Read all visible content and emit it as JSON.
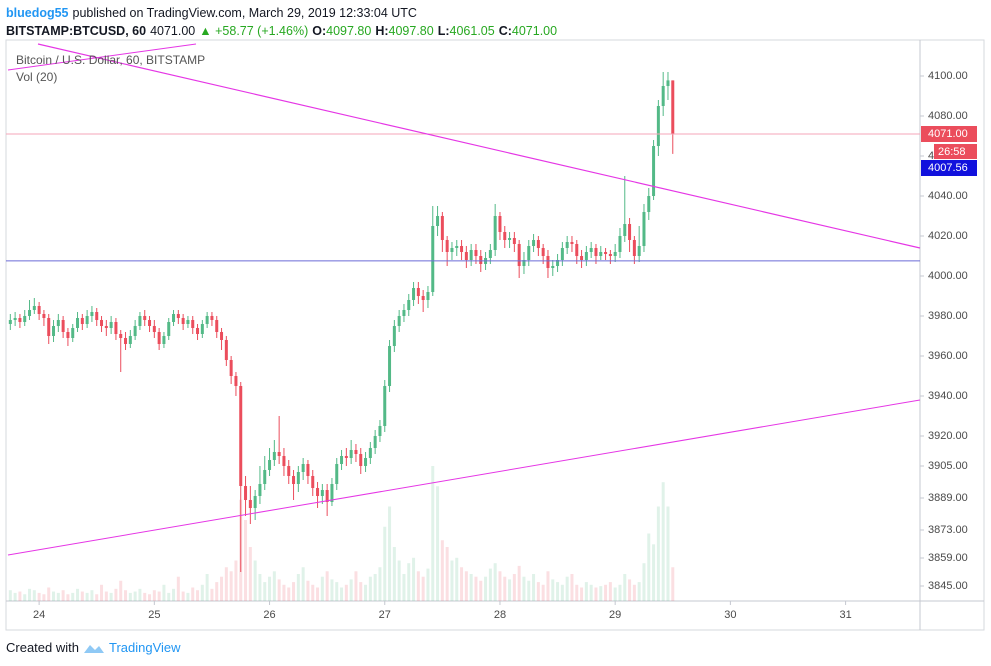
{
  "chart_data": {
    "type": "candlestick",
    "header": {
      "author": "bluedog55",
      "published": "published on TradingView.com, March 29, 2019 12:33:04 UTC",
      "symbol": "BITSTAMP:BTCUSD, 60",
      "last": "4071.00",
      "change": "+58.77 (+1.46%)",
      "o_label": "O:",
      "o": "4097.80",
      "h_label": "H:",
      "h": "4097.80",
      "l_label": "L:",
      "l": "4061.05",
      "c_label": "C:",
      "c": "4071.00"
    },
    "series_title": "Bitcoin / U.S. Dollar, 60, BITSTAMP",
    "indicator": "Vol (20)",
    "footer": {
      "created": "Created with",
      "brand": "TradingView"
    },
    "up_color": "#53b987",
    "down_color": "#eb4d5c",
    "x": [
      -6,
      -5,
      -4,
      -3,
      -2,
      -1,
      0,
      1,
      2,
      3,
      4,
      5,
      6,
      7,
      8,
      9,
      10,
      11,
      12,
      13,
      14,
      15,
      16,
      17,
      18,
      19,
      20,
      21,
      22,
      23,
      24,
      25,
      26,
      27,
      28,
      29,
      30,
      31,
      32,
      33,
      34,
      35,
      36,
      37,
      38,
      39,
      40,
      41,
      42,
      43,
      44,
      45,
      46,
      47,
      48,
      49,
      50,
      51,
      52,
      53,
      54,
      55,
      56,
      57,
      58,
      59,
      60,
      61,
      62,
      63,
      64,
      65,
      66,
      67,
      68,
      69,
      70,
      71,
      72,
      73,
      74,
      75,
      76,
      77,
      78,
      79,
      80,
      81,
      82,
      83,
      84,
      85,
      86,
      87,
      88,
      89,
      90,
      91,
      92,
      93,
      94,
      95,
      96,
      97,
      98,
      99,
      100,
      101,
      102,
      103,
      104,
      105,
      106,
      107,
      108,
      109,
      110,
      111,
      112,
      113,
      114,
      115,
      116,
      117,
      118,
      119,
      120,
      121,
      122,
      123,
      124,
      125,
      126,
      127,
      128,
      129,
      130,
      131,
      132
    ],
    "open": [
      3976,
      3978,
      3979,
      3977,
      3980,
      3983,
      3985,
      3981,
      3979,
      3970,
      3975,
      3978,
      3972,
      3969,
      3974,
      3979,
      3976,
      3980,
      3982,
      3978,
      3975,
      3974,
      3977,
      3971,
      3969,
      3966,
      3970,
      3975,
      3980,
      3978,
      3975,
      3972,
      3966,
      3970,
      3977,
      3981,
      3979,
      3976,
      3978,
      3974,
      3971,
      3976,
      3980,
      3978,
      3972,
      3968,
      3958,
      3950,
      3945,
      3895,
      3888,
      3884,
      3890,
      3896,
      3903,
      3908,
      3912,
      3910,
      3905,
      3900,
      3896,
      3902,
      3906,
      3900,
      3894,
      3890,
      3893,
      3887,
      3896,
      3906,
      3910,
      3909,
      3913,
      3911,
      3905,
      3909,
      3914,
      3920,
      3925,
      3945,
      3965,
      3975,
      3980,
      3983,
      3988,
      3994,
      3990,
      3988,
      3992,
      4025,
      4030,
      4018,
      4012,
      4014,
      4015,
      4012,
      4008,
      4013,
      4010,
      4006,
      4009,
      4013,
      4030,
      4022,
      4018,
      4019,
      4016,
      4005,
      4008,
      4015,
      4018,
      4014,
      4010,
      4004,
      4005,
      4008,
      4014,
      4017,
      4016,
      4010,
      4008,
      4012,
      4014,
      4010,
      4012,
      4011,
      4010,
      4012,
      4020,
      4026,
      4018,
      4010,
      4015,
      4032,
      4040,
      4065,
      4085,
      4095,
      4097.8
    ],
    "high": [
      3981,
      3982,
      3981,
      3983,
      3988,
      3989,
      3987,
      3983,
      3981,
      3978,
      3981,
      3980,
      3974,
      3976,
      3982,
      3981,
      3983,
      3985,
      3984,
      3980,
      3978,
      3980,
      3979,
      3973,
      3972,
      3973,
      3978,
      3982,
      3983,
      3980,
      3978,
      3974,
      3972,
      3979,
      3983,
      3983,
      3981,
      3980,
      3980,
      3976,
      3978,
      3982,
      3982,
      3980,
      3974,
      3970,
      3960,
      3952,
      3947,
      3900,
      3895,
      3893,
      3905,
      3910,
      3914,
      3918,
      3930,
      3914,
      3908,
      3903,
      3905,
      3909,
      3908,
      3903,
      3897,
      3896,
      3896,
      3899,
      3909,
      3913,
      3914,
      3918,
      3916,
      3914,
      3912,
      3917,
      3923,
      3928,
      3948,
      3968,
      3978,
      3983,
      3986,
      3991,
      3997,
      3997,
      3993,
      3995,
      4035,
      4035,
      4032,
      4020,
      4017,
      4018,
      4018,
      4015,
      4016,
      4016,
      4013,
      4012,
      4016,
      4036,
      4032,
      4025,
      4022,
      4022,
      4018,
      4012,
      4018,
      4021,
      4020,
      4016,
      4013,
      4008,
      4011,
      4017,
      4020,
      4020,
      4018,
      4013,
      4015,
      4017,
      4016,
      4015,
      4014,
      4013,
      4016,
      4024,
      4050,
      4029,
      4020,
      4025,
      4036,
      4044,
      4068,
      4088,
      4102,
      4102,
      4097.8
    ],
    "low": [
      3973,
      3975,
      3974,
      3975,
      3978,
      3981,
      3978,
      3975,
      3966,
      3967,
      3972,
      3969,
      3965,
      3967,
      3972,
      3973,
      3974,
      3977,
      3975,
      3972,
      3970,
      3971,
      3968,
      3952,
      3963,
      3964,
      3968,
      3973,
      3975,
      3972,
      3969,
      3963,
      3964,
      3968,
      3975,
      3976,
      3973,
      3974,
      3971,
      3968,
      3969,
      3974,
      3975,
      3969,
      3963,
      3955,
      3946,
      3940,
      3852,
      3880,
      3876,
      3878,
      3886,
      3893,
      3900,
      3905,
      3906,
      3900,
      3896,
      3888,
      3892,
      3898,
      3896,
      3890,
      3884,
      3886,
      3880,
      3885,
      3893,
      3903,
      3905,
      3906,
      3907,
      3901,
      3902,
      3906,
      3911,
      3917,
      3922,
      3942,
      3962,
      3972,
      3977,
      3980,
      3985,
      3986,
      3982,
      3984,
      3990,
      4020,
      4012,
      4005,
      4008,
      4010,
      4008,
      4004,
      4005,
      4006,
      4002,
      4003,
      4006,
      4010,
      4018,
      4014,
      4014,
      4012,
      3999,
      4001,
      4005,
      4012,
      4010,
      4006,
      3999,
      4000,
      4002,
      4005,
      4011,
      4012,
      4006,
      4004,
      4005,
      4009,
      4006,
      4008,
      4008,
      4006,
      4007,
      4009,
      4017,
      4012,
      4006,
      4007,
      4012,
      4028,
      4038,
      4060,
      4080,
      4088,
      4061.05
    ],
    "close": [
      3978,
      3979,
      3977,
      3980,
      3983,
      3985,
      3981,
      3979,
      3970,
      3975,
      3978,
      3972,
      3969,
      3974,
      3979,
      3976,
      3980,
      3982,
      3978,
      3975,
      3974,
      3977,
      3971,
      3969,
      3966,
      3970,
      3975,
      3980,
      3978,
      3975,
      3972,
      3966,
      3970,
      3977,
      3981,
      3979,
      3976,
      3978,
      3974,
      3971,
      3976,
      3980,
      3978,
      3972,
      3968,
      3958,
      3950,
      3945,
      3895,
      3888,
      3884,
      3890,
      3896,
      3903,
      3908,
      3912,
      3910,
      3905,
      3900,
      3896,
      3902,
      3906,
      3900,
      3894,
      3890,
      3893,
      3887,
      3896,
      3906,
      3910,
      3909,
      3913,
      3911,
      3905,
      3909,
      3914,
      3920,
      3925,
      3945,
      3965,
      3975,
      3980,
      3983,
      3988,
      3994,
      3990,
      3988,
      3992,
      4025,
      4030,
      4018,
      4012,
      4014,
      4015,
      4012,
      4008,
      4013,
      4010,
      4006,
      4009,
      4013,
      4030,
      4022,
      4018,
      4019,
      4016,
      4005,
      4008,
      4015,
      4018,
      4014,
      4010,
      4004,
      4005,
      4008,
      4014,
      4017,
      4016,
      4010,
      4008,
      4012,
      4014,
      4010,
      4012,
      4011,
      4010,
      4012,
      4020,
      4026,
      4018,
      4010,
      4015,
      4032,
      4040,
      4065,
      4085,
      4095,
      4097.8,
      4071
    ],
    "volume": [
      8,
      6,
      7,
      5,
      9,
      8,
      6,
      5,
      10,
      7,
      6,
      8,
      5,
      6,
      9,
      7,
      6,
      8,
      5,
      12,
      7,
      6,
      9,
      15,
      8,
      6,
      7,
      9,
      6,
      5,
      8,
      7,
      12,
      6,
      9,
      18,
      7,
      6,
      10,
      8,
      12,
      20,
      9,
      14,
      18,
      25,
      22,
      30,
      75,
      60,
      40,
      30,
      20,
      14,
      18,
      22,
      16,
      12,
      10,
      14,
      20,
      25,
      15,
      12,
      10,
      18,
      22,
      16,
      14,
      10,
      12,
      16,
      22,
      14,
      12,
      18,
      20,
      25,
      55,
      70,
      40,
      30,
      20,
      28,
      32,
      22,
      18,
      24,
      100,
      85,
      45,
      40,
      30,
      32,
      25,
      22,
      20,
      18,
      15,
      18,
      24,
      28,
      22,
      18,
      16,
      20,
      26,
      18,
      15,
      20,
      14,
      12,
      22,
      16,
      14,
      12,
      18,
      20,
      12,
      10,
      14,
      12,
      10,
      11,
      12,
      14,
      10,
      12,
      20,
      16,
      12,
      14,
      28,
      50,
      42,
      70,
      88,
      70,
      25
    ],
    "xlim": [
      -6.9,
      183.5
    ],
    "xticks": [
      {
        "value": 0,
        "label": "24"
      },
      {
        "value": 24,
        "label": "25"
      },
      {
        "value": 48,
        "label": "26"
      },
      {
        "value": 72,
        "label": "27"
      },
      {
        "value": 96,
        "label": "28"
      },
      {
        "value": 120,
        "label": "29"
      },
      {
        "value": 144,
        "label": "30"
      },
      {
        "value": 168,
        "label": "31"
      }
    ],
    "ylim": [
      3837.5,
      4118
    ],
    "yticks": [
      {
        "value": 4100,
        "label": "4100.00"
      },
      {
        "value": 4080,
        "label": "4080.00"
      },
      {
        "value": 4060,
        "label": "4060.00"
      },
      {
        "value": 4040,
        "label": "4040.00"
      },
      {
        "value": 4020,
        "label": "4020.00"
      },
      {
        "value": 4000,
        "label": "4000.00"
      },
      {
        "value": 3980,
        "label": "3980.00"
      },
      {
        "value": 3960,
        "label": "3960.00"
      },
      {
        "value": 3940,
        "label": "3940.00"
      },
      {
        "value": 3920,
        "label": "3920.00"
      },
      {
        "value": 3905,
        "label": "3905.00"
      },
      {
        "value": 3889,
        "label": "3889.00"
      },
      {
        "value": 3873,
        "label": "3873.00"
      },
      {
        "value": 3859,
        "label": "3859.00"
      },
      {
        "value": 3845,
        "label": "3845.00"
      }
    ],
    "price_line": {
      "value": 4071,
      "label": "4071.00"
    },
    "countdown": "26:58",
    "level_line": {
      "value": 4007.56,
      "label": "4007.56"
    }
  }
}
